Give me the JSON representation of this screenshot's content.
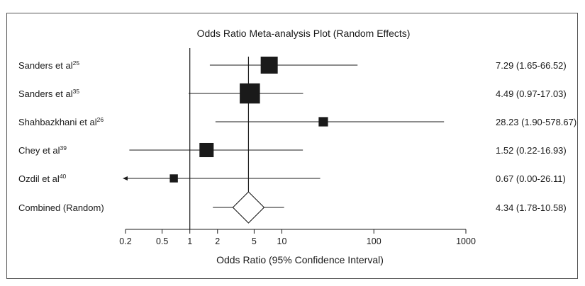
{
  "chart_data": {
    "type": "forest",
    "title": "Odds Ratio Meta-analysis Plot (Random Effects)",
    "xlabel": "Odds Ratio (95% Confidence Interval)",
    "x_scale": "log",
    "xlim": [
      0.2,
      1000
    ],
    "x_ticks": [
      0.2,
      0.5,
      1,
      2,
      5,
      10,
      100,
      1000
    ],
    "x_tick_labels": [
      "0.2",
      "0.5",
      "1",
      "2",
      "5",
      "10",
      "100",
      "1000"
    ],
    "reference_line": 1,
    "studies": [
      {
        "label": "Sanders et al",
        "ref": "25",
        "or": 7.29,
        "lo": 1.65,
        "hi": 66.52,
        "text": "7.29 (1.65-66.52)",
        "weight": 1.0
      },
      {
        "label": "Sanders et al",
        "ref": "35",
        "or": 4.49,
        "lo": 0.97,
        "hi": 17.03,
        "text": "4.49 (0.97-17.03)",
        "weight": 1.25
      },
      {
        "label": "Shahbazkhani et al",
        "ref": "26",
        "or": 28.23,
        "lo": 1.9,
        "hi": 578.67,
        "text": "28.23 (1.90-578.67)",
        "weight": 0.4
      },
      {
        "label": "Chey et al",
        "ref": "39",
        "or": 1.52,
        "lo": 0.22,
        "hi": 16.93,
        "text": "1.52 (0.22-16.93)",
        "weight": 0.78
      },
      {
        "label": "Ozdil et al",
        "ref": "40",
        "or": 0.67,
        "lo": 0.0,
        "hi": 26.11,
        "text": "0.67 (0.00-26.11)",
        "weight": 0.3
      }
    ],
    "combined": {
      "label": "Combined (Random)",
      "or": 4.34,
      "lo": 1.78,
      "hi": 10.58,
      "text": "4.34 (1.78-10.58)"
    }
  }
}
